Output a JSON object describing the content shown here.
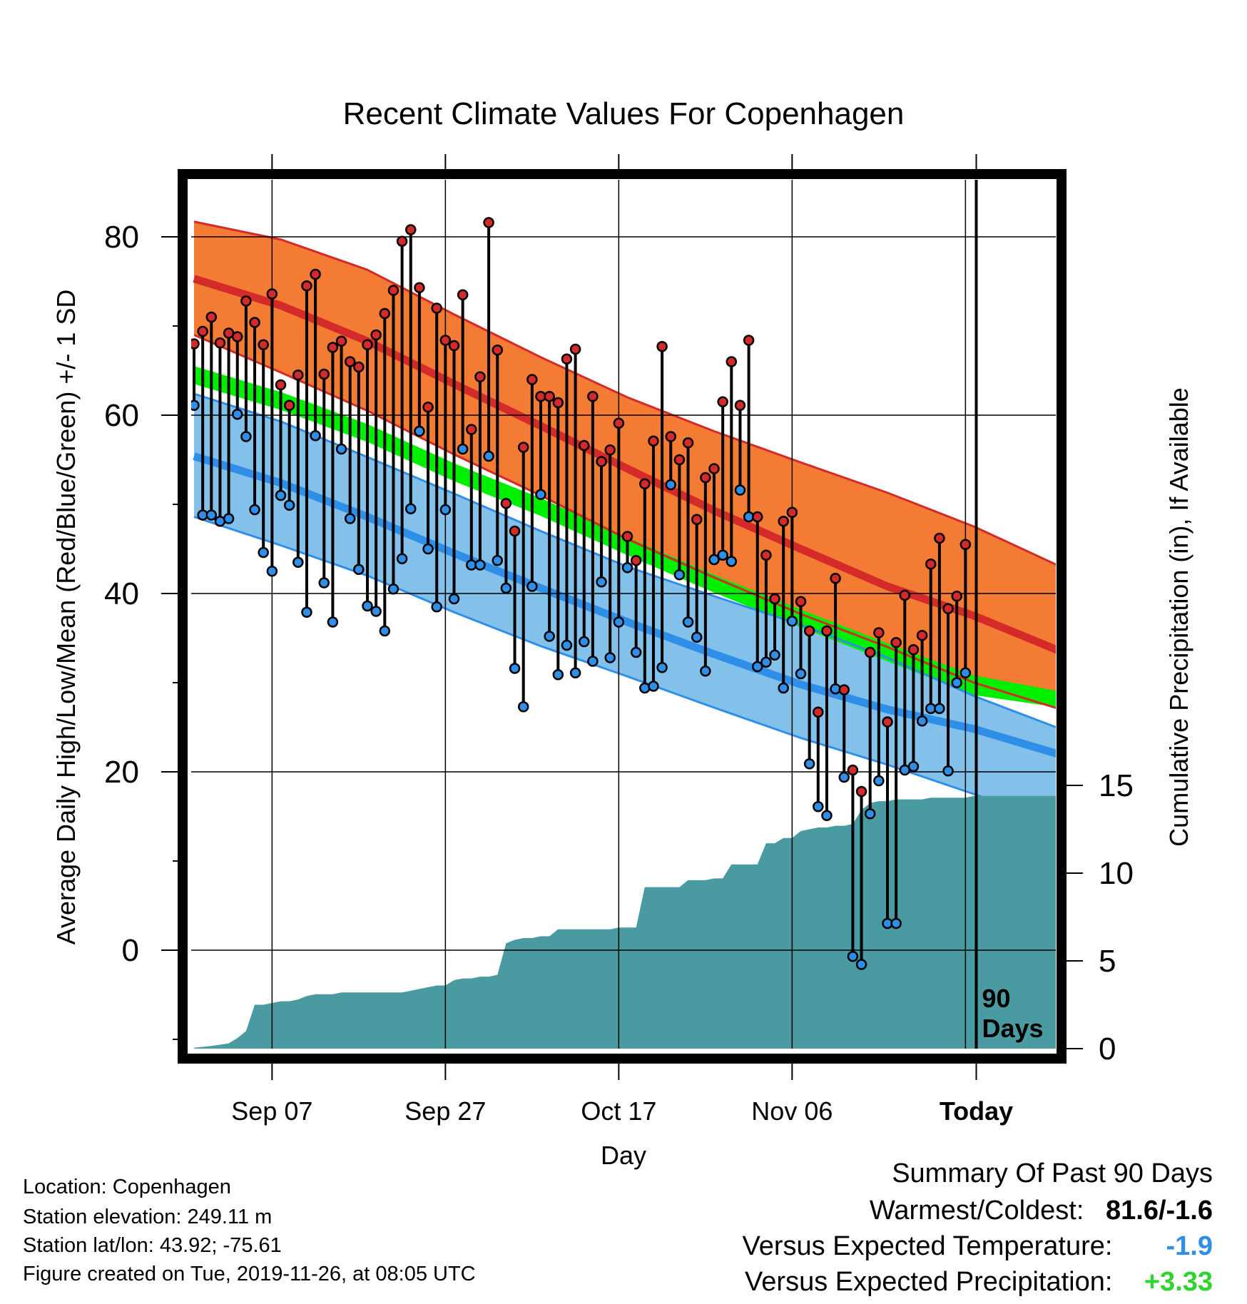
{
  "chart_data": {
    "type": "line",
    "title": "Recent Climate Values For Copenhagen",
    "xlabel": "Day",
    "ylabel": "Average Daily High/Low/Mean (Red/Blue/Green) +/- 1 SD",
    "y2label": "Cumulative Precipitation (in), If Available",
    "x_ticks": [
      "Sep 07",
      "Sep 27",
      "Oct 17",
      "Nov 06",
      "Today"
    ],
    "y_ticks": [
      "0",
      "20",
      "40",
      "60",
      "80"
    ],
    "y2_ticks": [
      "0",
      "5",
      "10",
      "15"
    ],
    "ylim": [
      -10.5,
      86.5
    ],
    "y2lim": [
      0,
      15
    ],
    "xlim": [
      0,
      100
    ],
    "today_index": 90,
    "today_label": "90\nDays",
    "grid": true,
    "colors": {
      "high_band": "#f47b33",
      "high_line": "#d42a2a",
      "overlap_band": "#8b1a1a",
      "low_band": "#83c1ea",
      "low_line": "#2f8fe8",
      "mean_band": "#00ee00",
      "precip_fill": "#4a9aa1",
      "high_dot": "#d42a2a",
      "low_dot": "#2f8fe8"
    },
    "normals": {
      "x": [
        0,
        10,
        20,
        30,
        40,
        50,
        60,
        70,
        80,
        90,
        100
      ],
      "high_mean": [
        75.3,
        72.3,
        68.3,
        63.5,
        58.8,
        54.0,
        49.3,
        45.0,
        40.8,
        37.5,
        33.5
      ],
      "high_upper": [
        81.7,
        79.7,
        76.3,
        71.3,
        66.5,
        62.0,
        58.2,
        54.7,
        51.3,
        47.5,
        43.0
      ],
      "high_lower": [
        69.0,
        64.8,
        60.5,
        55.6,
        51.0,
        46.1,
        41.8,
        37.7,
        34.0,
        30.0,
        27.0
      ],
      "low_mean": [
        55.4,
        52.4,
        48.6,
        44.5,
        40.6,
        36.8,
        33.2,
        29.8,
        27.0,
        24.8,
        21.9
      ],
      "low_upper": [
        62.4,
        59.3,
        55.3,
        51.2,
        47.0,
        43.0,
        39.7,
        36.5,
        32.8,
        28.5,
        24.8
      ],
      "low_lower": [
        48.6,
        45.4,
        42.0,
        37.9,
        34.1,
        30.7,
        27.2,
        23.8,
        20.8,
        17.5,
        14.2
      ],
      "mean_mean": [
        64.5,
        61.6,
        58.0,
        53.6,
        49.7,
        45.3,
        41.1,
        37.2,
        33.4,
        30.0,
        27.5
      ],
      "mean_upper": [
        65.5,
        62.6,
        59.0,
        54.6,
        50.7,
        46.3,
        42.1,
        38.2,
        34.4,
        30.8,
        29.0
      ],
      "mean_lower": [
        63.5,
        60.6,
        57.0,
        52.6,
        48.7,
        44.3,
        40.1,
        36.2,
        32.4,
        28.6,
        27.2
      ]
    },
    "series": [
      {
        "name": "High",
        "x": [
          0,
          1,
          2,
          3,
          4,
          5,
          6,
          7,
          8,
          9,
          10,
          11,
          12,
          13,
          14,
          15,
          16,
          17,
          18,
          19,
          20,
          21,
          22,
          23,
          24,
          25,
          26,
          27,
          28,
          29,
          30,
          31,
          32,
          33,
          34,
          35,
          36,
          37,
          38,
          39,
          40,
          41,
          42,
          43,
          44,
          45,
          46,
          47,
          48,
          49,
          50,
          51,
          52,
          53,
          54,
          55,
          56,
          57,
          58,
          59,
          60,
          61,
          62,
          63,
          64,
          65,
          66,
          67,
          68,
          69,
          70,
          71,
          72,
          73,
          74,
          75,
          76,
          77,
          78,
          79,
          80,
          81,
          82,
          83,
          84,
          85,
          86,
          87,
          88,
          89
        ],
        "values": [
          68.0,
          69.4,
          71.0,
          68.1,
          69.2,
          68.8,
          72.8,
          70.4,
          67.9,
          73.6,
          63.4,
          61.1,
          64.5,
          74.5,
          75.8,
          64.6,
          67.6,
          68.3,
          66.0,
          65.4,
          67.9,
          69.0,
          71.4,
          74.0,
          79.5,
          80.8,
          74.3,
          60.9,
          72.0,
          68.4,
          67.8,
          73.5,
          58.4,
          64.3,
          81.6,
          67.3,
          50.1,
          47.0,
          56.4,
          64.0,
          62.1,
          62.1,
          61.4,
          66.3,
          67.4,
          56.6,
          62.1,
          54.8,
          56.1,
          59.1,
          46.4,
          43.7,
          52.3,
          57.1,
          67.7,
          57.6,
          55.0,
          56.9,
          48.3,
          53.0,
          54.0,
          61.5,
          66.0,
          61.1,
          68.4,
          48.6,
          44.3,
          39.4,
          48.1,
          49.1,
          39.1,
          35.8,
          26.7,
          35.8,
          41.7,
          29.2,
          20.2,
          17.8,
          33.4,
          35.6,
          25.6,
          34.5,
          39.8,
          33.7,
          35.3,
          43.3,
          46.2,
          38.3,
          39.7,
          45.5
        ]
      },
      {
        "name": "Low",
        "x": [
          0,
          1,
          2,
          3,
          4,
          5,
          6,
          7,
          8,
          9,
          10,
          11,
          12,
          13,
          14,
          15,
          16,
          17,
          18,
          19,
          20,
          21,
          22,
          23,
          24,
          25,
          26,
          27,
          28,
          29,
          30,
          31,
          32,
          33,
          34,
          35,
          36,
          37,
          38,
          39,
          40,
          41,
          42,
          43,
          44,
          45,
          46,
          47,
          48,
          49,
          50,
          51,
          52,
          53,
          54,
          55,
          56,
          57,
          58,
          59,
          60,
          61,
          62,
          63,
          64,
          65,
          66,
          67,
          68,
          69,
          70,
          71,
          72,
          73,
          74,
          75,
          76,
          77,
          78,
          79,
          80,
          81,
          82,
          83,
          84,
          85,
          86,
          87,
          88,
          89
        ],
        "values": [
          61.1,
          48.8,
          48.8,
          48.1,
          48.4,
          60.1,
          57.6,
          49.4,
          44.6,
          42.5,
          51.0,
          49.9,
          43.5,
          37.9,
          57.7,
          41.2,
          36.8,
          56.2,
          48.4,
          42.7,
          38.6,
          38.0,
          35.8,
          40.5,
          43.9,
          49.5,
          58.2,
          45.0,
          38.5,
          49.4,
          39.4,
          56.2,
          43.2,
          43.2,
          55.4,
          43.7,
          40.6,
          31.6,
          27.3,
          40.8,
          51.1,
          35.2,
          30.9,
          34.2,
          31.1,
          34.6,
          32.4,
          41.3,
          32.8,
          36.8,
          42.9,
          33.4,
          29.4,
          29.6,
          31.7,
          52.2,
          42.1,
          36.8,
          35.1,
          31.3,
          43.8,
          44.3,
          43.6,
          51.6,
          48.6,
          31.8,
          32.3,
          33.1,
          29.4,
          36.9,
          31.0,
          20.9,
          16.1,
          15.1,
          29.3,
          19.4,
          -0.7,
          -1.6,
          15.3,
          19.0,
          3.0,
          3.0,
          20.2,
          20.6,
          25.7,
          27.1,
          27.1,
          20.1,
          30.0,
          31.1
        ]
      }
    ],
    "precipitation": {
      "x": [
        0,
        2,
        4,
        5,
        6,
        7,
        8,
        9,
        10,
        11,
        12,
        13,
        14,
        15,
        16,
        17,
        18,
        19,
        20,
        21,
        22,
        23,
        24,
        25,
        26,
        27,
        28,
        29,
        30,
        31,
        32,
        33,
        34,
        35,
        36,
        37,
        38,
        39,
        40,
        41,
        42,
        43,
        44,
        45,
        46,
        47,
        48,
        49,
        50,
        51,
        52,
        53,
        54,
        55,
        56,
        57,
        58,
        59,
        60,
        61,
        62,
        63,
        64,
        65,
        66,
        67,
        68,
        69,
        70,
        71,
        72,
        73,
        74,
        75,
        76,
        77,
        78,
        79,
        80,
        81,
        82,
        83,
        84,
        85,
        86,
        87,
        88,
        89,
        90,
        100
      ],
      "values": [
        0.05,
        0.15,
        0.3,
        0.6,
        1.0,
        2.5,
        2.5,
        2.6,
        2.7,
        2.7,
        2.8,
        3.0,
        3.1,
        3.1,
        3.1,
        3.2,
        3.2,
        3.2,
        3.2,
        3.2,
        3.2,
        3.2,
        3.2,
        3.3,
        3.4,
        3.5,
        3.6,
        3.6,
        3.9,
        4.0,
        4.0,
        4.1,
        4.1,
        4.2,
        6.0,
        6.2,
        6.3,
        6.3,
        6.4,
        6.4,
        6.8,
        6.8,
        6.8,
        6.8,
        6.8,
        6.8,
        6.8,
        6.9,
        6.9,
        6.9,
        9.2,
        9.2,
        9.2,
        9.2,
        9.2,
        9.6,
        9.6,
        9.6,
        9.7,
        9.7,
        10.5,
        10.5,
        10.5,
        10.5,
        11.7,
        11.7,
        12.0,
        12.0,
        12.4,
        12.5,
        12.6,
        12.6,
        12.7,
        12.7,
        12.8,
        13.6,
        14.0,
        14.1,
        14.1,
        14.2,
        14.2,
        14.2,
        14.2,
        14.3,
        14.3,
        14.3,
        14.3,
        14.3,
        14.4,
        14.4
      ]
    }
  },
  "info": {
    "location": "Location: Copenhagen",
    "elevation": "Station elevation: 249.11 m",
    "latlon": "Station lat/lon: 43.92; -75.61",
    "created": "Figure created on Tue, 2019-11-26, at 08:05 UTC"
  },
  "summary": {
    "title": "Summary Of Past 90 Days",
    "warmest_coldest_label": "Warmest/Coldest:",
    "warmest_coldest_value": "81.6/-1.6",
    "temp_label": "Versus Expected Temperature:",
    "temp_value": "-1.9",
    "temp_color": "#2f8fe8",
    "precip_label": "Versus Expected Precipitation:",
    "precip_value": "+3.33",
    "precip_color": "#2fd42f"
  }
}
